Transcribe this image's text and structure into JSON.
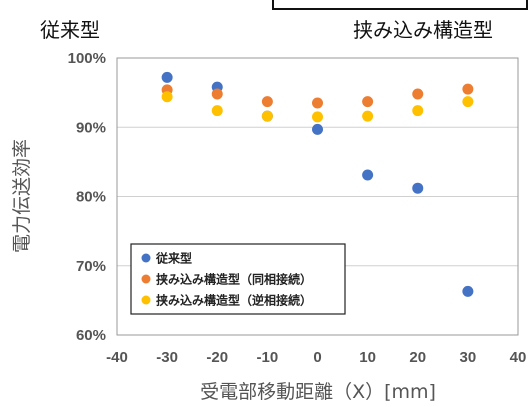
{
  "header": {
    "left_label": "従来型",
    "right_label": "挟み込み構造型"
  },
  "chart_data": {
    "type": "scatter",
    "xlabel": "受電部移動距離（X）[mm]",
    "ylabel": "電力伝送効率",
    "xlim": [
      -40,
      40
    ],
    "ylim": [
      60,
      100
    ],
    "x_ticks": [
      -40,
      -30,
      -20,
      -10,
      0,
      10,
      20,
      30,
      40
    ],
    "x_tick_labels": [
      "-40",
      "-30",
      "-20",
      "-10",
      "0",
      "10",
      "20",
      "30",
      "40"
    ],
    "y_ticks": [
      60,
      70,
      80,
      90,
      100
    ],
    "y_tick_labels": [
      "60%",
      "70%",
      "80%",
      "90%",
      "100%"
    ],
    "grid": "horizontal",
    "legend_position": "bottom-left",
    "series": [
      {
        "name": "従来型",
        "color": "#4472C4",
        "x": [
          -30,
          -20,
          -10,
          0,
          10,
          20,
          30
        ],
        "y": [
          97.2,
          95.8,
          91.6,
          89.7,
          83.1,
          81.2,
          66.3
        ]
      },
      {
        "name": "挟み込み構造型（同相接続）",
        "color": "#ED7D31",
        "x": [
          -30,
          -20,
          -10,
          0,
          10,
          20,
          30
        ],
        "y": [
          95.4,
          94.8,
          93.7,
          93.5,
          93.7,
          94.8,
          95.5
        ]
      },
      {
        "name": "挟み込み構造型（逆相接続）",
        "color": "#FFC000",
        "x": [
          -30,
          -20,
          -10,
          0,
          10,
          20,
          30
        ],
        "y": [
          94.4,
          92.4,
          91.6,
          91.5,
          91.6,
          92.4,
          93.7
        ]
      }
    ]
  }
}
